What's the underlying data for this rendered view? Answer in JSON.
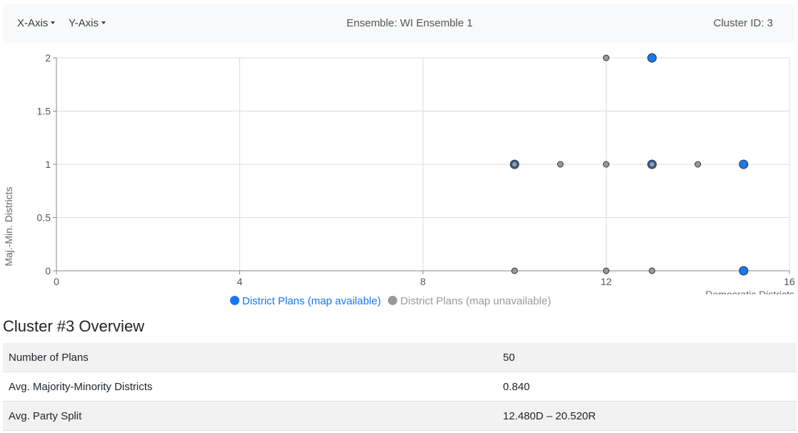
{
  "navbar": {
    "x_axis_label": "X-Axis",
    "y_axis_label": "Y-Axis",
    "ensemble_label": "Ensemble: WI Ensemble 1",
    "cluster_id_label": "Cluster ID: 3"
  },
  "colors": {
    "available": "#1877f2",
    "unavailable": "#999999",
    "grid": "#dddddd",
    "axis": "#888888"
  },
  "chart_data": {
    "type": "scatter",
    "xlabel": "Democratic Districts",
    "ylabel": "Maj.-Min. Districts",
    "xlim": [
      0,
      16
    ],
    "ylim": [
      0,
      2
    ],
    "xticks": [
      0,
      4,
      8,
      12,
      16
    ],
    "yticks": [
      0,
      0.5,
      1,
      1.5,
      2
    ],
    "grid": true,
    "legend_position": "bottom",
    "series": [
      {
        "name": "District Plans (map available)",
        "color": "#1877f2",
        "points": [
          {
            "x": 13,
            "y": 2
          },
          {
            "x": 10,
            "y": 1
          },
          {
            "x": 13,
            "y": 1
          },
          {
            "x": 15,
            "y": 1
          },
          {
            "x": 15,
            "y": 0
          }
        ]
      },
      {
        "name": "District Plans (map unavailable)",
        "color": "#999999",
        "points": [
          {
            "x": 12,
            "y": 2
          },
          {
            "x": 10,
            "y": 1
          },
          {
            "x": 11,
            "y": 1
          },
          {
            "x": 12,
            "y": 1
          },
          {
            "x": 13,
            "y": 1
          },
          {
            "x": 14,
            "y": 1
          },
          {
            "x": 10,
            "y": 0
          },
          {
            "x": 12,
            "y": 0
          },
          {
            "x": 13,
            "y": 0
          }
        ]
      }
    ]
  },
  "overview": {
    "title": "Cluster #3 Overview",
    "rows": [
      {
        "label": "Number of Plans",
        "value": "50"
      },
      {
        "label": "Avg. Majority-Minority Districts",
        "value": "0.840"
      },
      {
        "label": "Avg. Party Split",
        "value": "12.480D – 20.520R"
      }
    ]
  }
}
